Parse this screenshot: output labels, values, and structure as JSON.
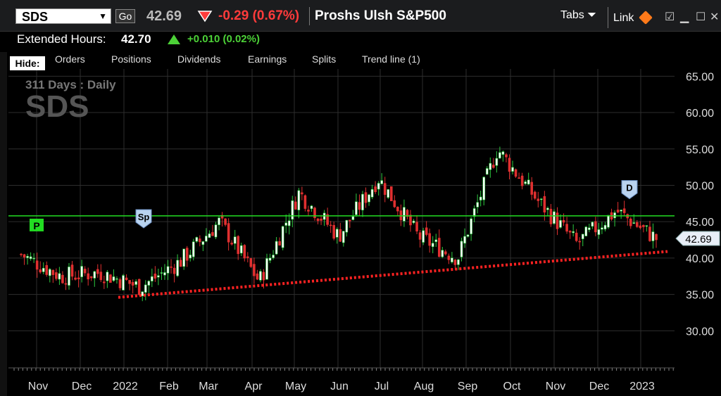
{
  "header": {
    "symbol": "SDS",
    "go_label": "Go",
    "last_price": "42.69",
    "change": "-0.29 (0.67%)",
    "security_name": "Proshs Ulsh S&P500",
    "tabs_label": "Tabs",
    "link_label": "Link",
    "colors": {
      "down": "#ff3b3b",
      "up": "#4cd137"
    }
  },
  "extended": {
    "label": "Extended Hours:",
    "price": "42.70",
    "change": "+0.010 (0.02%)"
  },
  "toolbar": {
    "hide_label": "Hide:",
    "tabs": [
      "Orders",
      "Positions",
      "Dividends",
      "Earnings",
      "Splits",
      "Trend line (1)"
    ]
  },
  "chart_data": {
    "type": "candlestick",
    "period_label": "311  Days : Daily",
    "watermark": "SDS",
    "x_labels": [
      "Nov",
      "Dec",
      "2022",
      "Feb",
      "Mar",
      "Apr",
      "May",
      "Jun",
      "Jul",
      "Aug",
      "Sep",
      "Oct",
      "Nov",
      "Dec",
      "2023"
    ],
    "y_ticks": [
      "65.00",
      "60.00",
      "55.00",
      "50.00",
      "45.00",
      "40.00",
      "35.00",
      "30.00"
    ],
    "ylim": [
      25,
      66
    ],
    "last_price_label": "42.69",
    "horizontal_line": {
      "value": 45.8,
      "label": "P",
      "color": "#22dd22"
    },
    "trend_line": {
      "start": {
        "month": "Dec",
        "value": 34.6
      },
      "end": {
        "month": "2023",
        "value": 40.9
      },
      "color": "#ff2222"
    },
    "markers": [
      {
        "label": "Sp",
        "month": "Jan",
        "value": 45.5
      },
      {
        "label": "D",
        "month": "Dec",
        "value": 49.5
      }
    ],
    "close_path": [
      {
        "month": "Oct",
        "close": 40.5
      },
      {
        "month": "Nov",
        "close": 37.5
      },
      {
        "month": "Dec",
        "close": 38.0
      },
      {
        "month": "Jan",
        "close": 36.0
      },
      {
        "month": "Feb",
        "close": 39.5
      },
      {
        "month": "Mar",
        "close": 45.0
      },
      {
        "month": "Apr",
        "close": 36.8
      },
      {
        "month": "May",
        "close": 49.0
      },
      {
        "month": "Jun",
        "close": 43.0
      },
      {
        "month": "Jul",
        "close": 51.0
      },
      {
        "month": "Aug",
        "close": 43.0
      },
      {
        "month": "Sep",
        "close": 40.0
      },
      {
        "month": "Oct",
        "close": 55.0
      },
      {
        "month": "Nov",
        "close": 48.0
      },
      {
        "month": "Dec",
        "close": 42.0
      },
      {
        "month": "Jan",
        "close": 46.5
      },
      {
        "month": "Jan",
        "close": 42.69
      }
    ]
  }
}
